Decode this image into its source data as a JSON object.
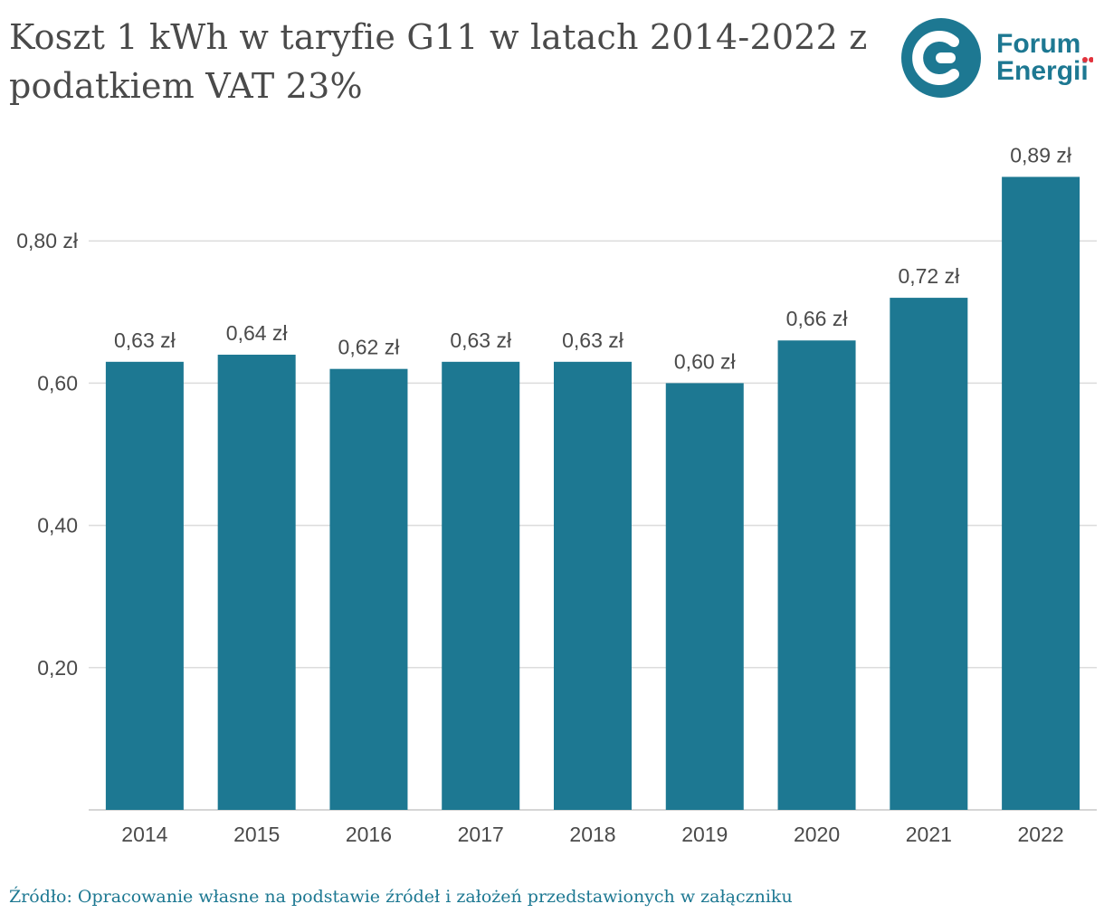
{
  "title": "Koszt 1 kWh w taryfie G11 w latach 2014-2022 z podatkiem VAT 23%",
  "logo": {
    "line1": "Forum",
    "line2": "Energii",
    "icon": "forum-energii-e-icon",
    "color": "#1d7892",
    "accent": "#e2323c"
  },
  "source": "Źródło: Opracowanie własne na podstawie źródeł i założeń przedstawionych w załączniku",
  "chart_data": {
    "type": "bar",
    "title": "Koszt 1 kWh w taryfie G11 w latach 2014-2022 z podatkiem VAT 23%",
    "categories": [
      "2014",
      "2015",
      "2016",
      "2017",
      "2018",
      "2019",
      "2020",
      "2021",
      "2022"
    ],
    "values": [
      0.63,
      0.64,
      0.62,
      0.63,
      0.63,
      0.6,
      0.66,
      0.72,
      0.89
    ],
    "data_labels": [
      "0,63 zł",
      "0,64 zł",
      "0,62 zł",
      "0,63 zł",
      "0,63 zł",
      "0,60 zł",
      "0,66 zł",
      "0,72 zł",
      "0,89 zł"
    ],
    "y_ticks": [
      0.2,
      0.4,
      0.6,
      0.8
    ],
    "y_tick_labels": [
      "0,20",
      "0,40",
      "0,60",
      "0,80 zł"
    ],
    "ylim": [
      0,
      0.89
    ],
    "xlabel": "",
    "ylabel": "",
    "grid": true,
    "bar_color": "#1d7892"
  }
}
